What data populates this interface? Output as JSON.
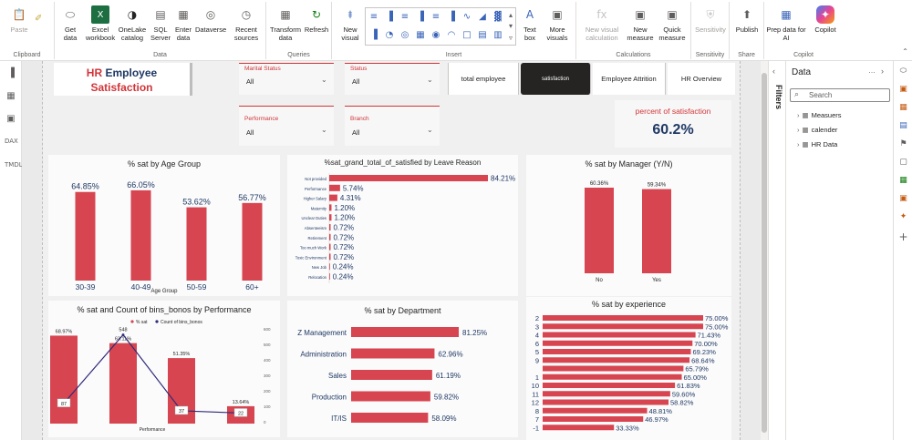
{
  "ribbon": {
    "groups": [
      {
        "label": "Clipboard"
      },
      {
        "label": "Data"
      },
      {
        "label": "Queries"
      },
      {
        "label": "Insert"
      },
      {
        "label": "Calculations"
      },
      {
        "label": "Sensitivity"
      },
      {
        "label": "Share"
      },
      {
        "label": "Copilot"
      }
    ],
    "buttons": {
      "paste": "Paste",
      "get_data": "Get data",
      "excel": "Excel workbook",
      "onelake": "OneLake catalog",
      "sql": "SQL Server",
      "enter": "Enter data",
      "dataverse": "Dataverse",
      "recent": "Recent sources",
      "transform": "Transform data",
      "refresh": "Refresh",
      "new_visual": "New visual",
      "text_box": "Text box",
      "more_visuals": "More visuals",
      "new_visual_calc": "New visual calculation",
      "new_measure": "New measure",
      "quick_measure": "Quick measure",
      "sensitivity": "Sensitivity",
      "publish": "Publish",
      "prep_data": "Prep data for AI",
      "copilot": "Copilot"
    }
  },
  "report": {
    "title_line1_a": "HR",
    "title_line1_b": "Employee",
    "title_line2": "Satisfaction",
    "slicers": [
      {
        "title": "Marital Status",
        "value": "All"
      },
      {
        "title": "Status",
        "value": "All"
      },
      {
        "title": "Performance",
        "value": "All"
      },
      {
        "title": "Branch",
        "value": "All"
      }
    ],
    "nav_buttons": [
      "total employee",
      "satisfaction",
      "Employee Attrition",
      "HR Overview"
    ],
    "kpi": {
      "label": "percent of satisfaction",
      "value": "60.2%"
    }
  },
  "colors": {
    "bar": "#d64550",
    "line": "#2e2a7a",
    "accent": "#d13438",
    "kpi": "#1f3864"
  },
  "chart_data": [
    {
      "type": "bar",
      "title": "% sat by Age Group",
      "categories": [
        "30-39",
        "40-49",
        "50-59",
        "60+"
      ],
      "values": [
        64.85,
        66.05,
        53.62,
        56.77
      ],
      "labels": [
        "64.85%",
        "66.05%",
        "53.62%",
        "56.77%"
      ],
      "xlabel": "Age Group"
    },
    {
      "type": "bar",
      "orientation": "horizontal",
      "title": "%sat_grand_total_of_satisfied by Leave Reason",
      "categories": [
        "Not provided",
        "Performance",
        "Higher Salary",
        "Maternity",
        "Unclear Duties",
        "Absenteeism",
        "Retirement",
        "Too much Work",
        "Toxic Environment",
        "New Job",
        "Relocation"
      ],
      "values": [
        84.21,
        5.74,
        4.31,
        1.2,
        1.2,
        0.72,
        0.72,
        0.72,
        0.72,
        0.24,
        0.24
      ],
      "labels": [
        "84.21%",
        "5.74%",
        "4.31%",
        "1.20%",
        "1.20%",
        "0.72%",
        "0.72%",
        "0.72%",
        "0.72%",
        "0.24%",
        "0.24%"
      ]
    },
    {
      "type": "bar",
      "title": "% sat by Manager (Y/N)",
      "categories": [
        "No",
        "Yes"
      ],
      "values": [
        60.36,
        59.34
      ],
      "labels": [
        "60.36%",
        "59.34%"
      ]
    },
    {
      "type": "bar",
      "title": "% sat and Count of bins_bonos by Performance",
      "legend": [
        "% sat",
        "Count of bins_bonos"
      ],
      "xlabel": "Performance",
      "series": [
        {
          "name": "% sat",
          "values": [
            68.97,
            63.11,
            51.35,
            13.64
          ],
          "labels": [
            "68.97%",
            "63.11%",
            "51.35%",
            "13.64%"
          ]
        },
        {
          "name": "Count of bins_bonos",
          "values": [
            87,
            548,
            37,
            22
          ],
          "labels": [
            "87",
            "548",
            "37",
            "22"
          ]
        }
      ],
      "right_ticks": [
        "600",
        "500",
        "400",
        "300",
        "200",
        "100",
        "0"
      ]
    },
    {
      "type": "bar",
      "orientation": "horizontal",
      "title": "% sat by Department",
      "categories": [
        "Z Management",
        "Administration",
        "Sales",
        "Production",
        "IT/IS"
      ],
      "values": [
        81.25,
        62.96,
        61.19,
        59.82,
        58.09
      ],
      "labels": [
        "81.25%",
        "62.96%",
        "61.19%",
        "59.82%",
        "58.09%"
      ]
    },
    {
      "type": "bar",
      "orientation": "horizontal",
      "title": "% sat by experience",
      "categories": [
        "2",
        "3",
        "4",
        "6",
        "5",
        "9",
        "",
        "1",
        "10",
        "11",
        "12",
        "8",
        "7",
        "-1"
      ],
      "values": [
        75.0,
        75.0,
        71.43,
        70.0,
        69.23,
        68.64,
        65.79,
        65.0,
        61.83,
        59.6,
        58.82,
        48.81,
        46.97,
        33.33
      ],
      "labels": [
        "75.00%",
        "75.00%",
        "71.43%",
        "70.00%",
        "69.23%",
        "68.64%",
        "65.79%",
        "65.00%",
        "61.83%",
        "59.60%",
        "58.82%",
        "48.81%",
        "46.97%",
        "33.33%"
      ]
    }
  ],
  "panes": {
    "filters_label": "Filters",
    "data_title": "Data",
    "search_placeholder": "Search",
    "tables": [
      "Measuers",
      "calender",
      "HR Data"
    ]
  }
}
